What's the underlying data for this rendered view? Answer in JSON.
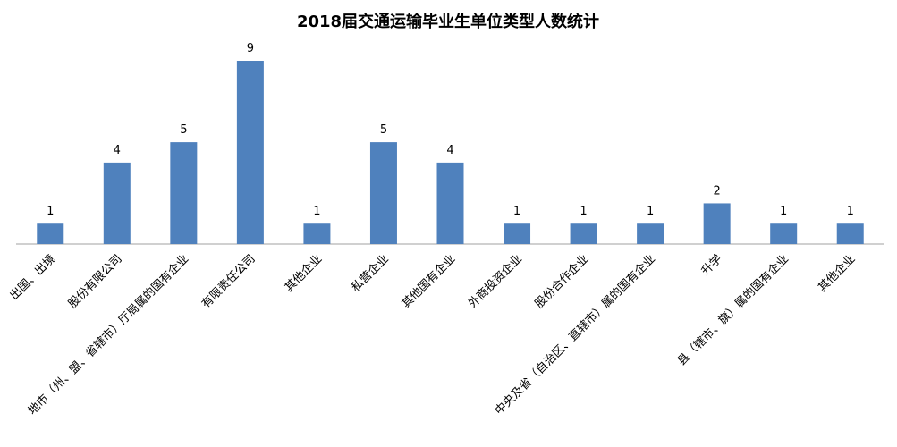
{
  "chart_data": {
    "type": "bar",
    "title": "2018届交通运输毕业生单位类型人数统计",
    "categories": [
      "出国、出境",
      "股份有限公司",
      "地市（州、盟、省辖市）厅局属的国有企业",
      "有限责任公司",
      "其他企业",
      "私营企业",
      "其他国有企业",
      "外商投资企业",
      "股份合作企业",
      "中央及省（自治区、直辖市）属的国有企业",
      "升学",
      "县（辖市、旗）属的国有企业",
      "其他企业"
    ],
    "values": [
      1,
      4,
      5,
      9,
      1,
      5,
      4,
      1,
      1,
      1,
      2,
      1,
      1
    ],
    "color": "#4f81bd"
  }
}
